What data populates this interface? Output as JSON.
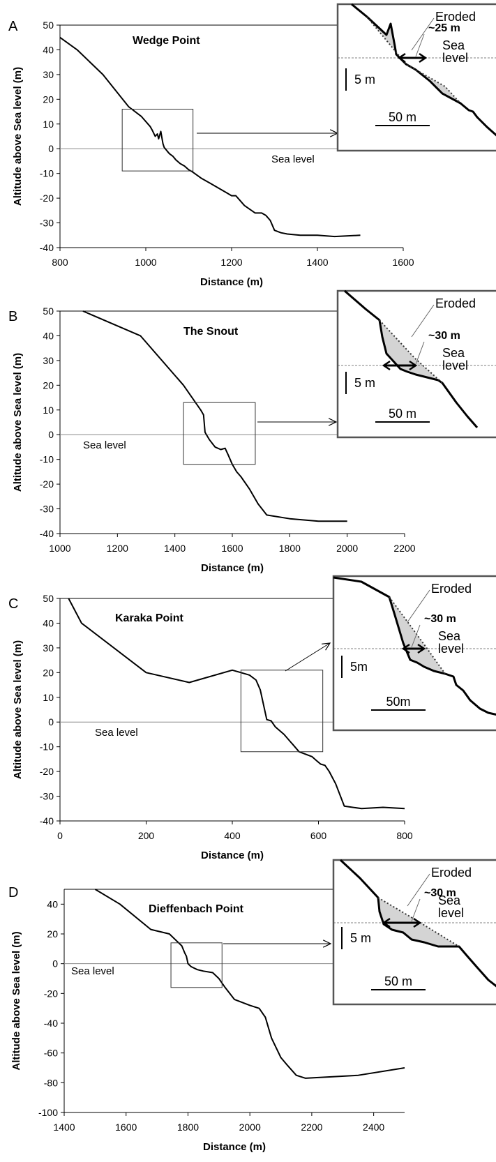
{
  "chart_data": [
    {
      "panel_label": "A",
      "type": "line",
      "title": "Wedge Point",
      "xlabel": "Distance (m)",
      "ylabel": "Altitude above Sea level (m)",
      "xlim": [
        800,
        1600
      ],
      "ylim": [
        -40,
        50
      ],
      "xticks": [
        "800",
        "1000",
        "1200",
        "1400",
        "1600"
      ],
      "yticks": [
        "-40",
        "-30",
        "-20",
        "-10",
        "0",
        "10",
        "20",
        "30",
        "40",
        "50"
      ],
      "sea_level_label": "Sea level",
      "zoom_box": {
        "x": [
          945,
          1110
        ],
        "y": [
          -9,
          16
        ]
      },
      "x": [
        800,
        840,
        900,
        960,
        990,
        1010,
        1015,
        1022,
        1027,
        1030,
        1035,
        1040,
        1043,
        1050,
        1055,
        1063,
        1070,
        1080,
        1090,
        1100,
        1110,
        1130,
        1150,
        1170,
        1190,
        1200,
        1210,
        1220,
        1230,
        1255,
        1270,
        1280,
        1290,
        1300,
        1315,
        1330,
        1360,
        1400,
        1440,
        1500
      ],
      "y": [
        45,
        40,
        30,
        17,
        13,
        9,
        7.5,
        5,
        6,
        4,
        7,
        2,
        0.5,
        -1,
        -2,
        -3,
        -4.5,
        -6,
        -7,
        -8.5,
        -9.5,
        -12,
        -14,
        -16,
        -18,
        -19,
        -19,
        -21,
        -23,
        -26,
        -26,
        -27,
        -29,
        -33,
        -34,
        -34.5,
        -35,
        -35,
        -35.5,
        -35
      ]
    },
    {
      "panel_label": "B",
      "type": "line",
      "title": "The Snout",
      "xlabel": "Distance (m)",
      "ylabel": "Altitude above Sea level (m)",
      "xlim": [
        1000,
        2200
      ],
      "ylim": [
        -40,
        50
      ],
      "xticks": [
        "1000",
        "1200",
        "1400",
        "1600",
        "1800",
        "2000",
        "2200"
      ],
      "yticks": [
        "-40",
        "-30",
        "-20",
        "-10",
        "0",
        "10",
        "20",
        "30",
        "40",
        "50"
      ],
      "sea_level_label": "Sea level",
      "zoom_box": {
        "x": [
          1430,
          1680
        ],
        "y": [
          -12,
          13
        ]
      },
      "x": [
        1080,
        1280,
        1430,
        1490,
        1500,
        1505,
        1510,
        1520,
        1530,
        1540,
        1560,
        1575,
        1585,
        1600,
        1615,
        1630,
        1660,
        1690,
        1720,
        1800,
        1900,
        2000
      ],
      "y": [
        50,
        40,
        20,
        10,
        8,
        1,
        0,
        -2,
        -3.5,
        -5,
        -6,
        -5.5,
        -8,
        -12,
        -15,
        -17,
        -22,
        -28,
        -32.5,
        -34,
        -35,
        -35
      ]
    },
    {
      "panel_label": "C",
      "type": "line",
      "title": "Karaka Point",
      "xlabel": "Distance (m)",
      "ylabel": "Altitude above Sea level (m)",
      "xlim": [
        0,
        800
      ],
      "ylim": [
        -40,
        50
      ],
      "xticks": [
        "0",
        "200",
        "400",
        "600",
        "800"
      ],
      "yticks": [
        "-40",
        "-30",
        "-20",
        "-10",
        "0",
        "10",
        "20",
        "30",
        "40",
        "50"
      ],
      "sea_level_label": "Sea level",
      "zoom_box": {
        "x": [
          420,
          610
        ],
        "y": [
          -12,
          21
        ]
      },
      "x": [
        20,
        50,
        200,
        300,
        400,
        420,
        440,
        455,
        465,
        480,
        490,
        500,
        520,
        530,
        535,
        540,
        555,
        570,
        585,
        595,
        605,
        615,
        625,
        640,
        660,
        700,
        750,
        800
      ],
      "y": [
        50,
        40,
        20,
        16,
        21,
        20,
        19,
        17,
        13,
        1,
        0.5,
        -2,
        -5,
        -7,
        -8,
        -9,
        -12,
        -13,
        -14,
        -15.5,
        -17,
        -17.5,
        -20,
        -25,
        -34,
        -35,
        -34.5,
        -35
      ]
    },
    {
      "panel_label": "D",
      "type": "line",
      "title": "Dieffenbach Point",
      "xlabel": "Distance (m)",
      "ylabel": "Altitude above Sea level (m)",
      "xlim": [
        1400,
        2500
      ],
      "ylim": [
        -100,
        50
      ],
      "xticks": [
        "1400",
        "1600",
        "1800",
        "2000",
        "2200",
        "2400"
      ],
      "yticks": [
        "-100",
        "-80",
        "-60",
        "-40",
        "-20",
        "0",
        "20",
        "40"
      ],
      "sea_level_label": "Sea level",
      "zoom_box": {
        "x": [
          1745,
          1910
        ],
        "y": [
          -16,
          14
        ]
      },
      "x": [
        1500,
        1580,
        1680,
        1740,
        1780,
        1790,
        1795,
        1800,
        1810,
        1830,
        1850,
        1880,
        1900,
        1920,
        1950,
        2000,
        2030,
        2050,
        2070,
        2100,
        2120,
        2150,
        2180,
        2350,
        2500
      ],
      "y": [
        50,
        40,
        23,
        20,
        12,
        7,
        5,
        0,
        -2,
        -4,
        -5,
        -6,
        -10,
        -16,
        -24,
        -28,
        -30,
        -36,
        -50,
        -63,
        -68,
        -75,
        -77,
        -75,
        -70
      ]
    }
  ],
  "insets": [
    {
      "eroded_label": "Eroded",
      "width_label": "~25 m",
      "sea_label_line1": "Sea",
      "sea_label_line2": "level",
      "vscale_label": "5 m",
      "hscale_label": "50 m"
    },
    {
      "eroded_label": "Eroded",
      "width_label": "~30 m",
      "sea_label_line1": "Sea",
      "sea_label_line2": "level",
      "vscale_label": "5 m",
      "hscale_label": "50 m"
    },
    {
      "eroded_label": "Eroded",
      "width_label": "~30 m",
      "sea_label_line1": "Sea",
      "sea_label_line2": "level",
      "vscale_label": "5m",
      "hscale_label": "50m"
    },
    {
      "eroded_label": "Eroded",
      "width_label": "~30 m",
      "sea_label_line1": "Sea",
      "sea_label_line2": "level",
      "vscale_label": "5 m",
      "hscale_label": "50 m"
    }
  ],
  "colors": {
    "line": "#000000",
    "axes": "#000000",
    "sea_line": "#888888",
    "eroded_fill": "#d4d4d4",
    "inset_frame": "#555555"
  }
}
